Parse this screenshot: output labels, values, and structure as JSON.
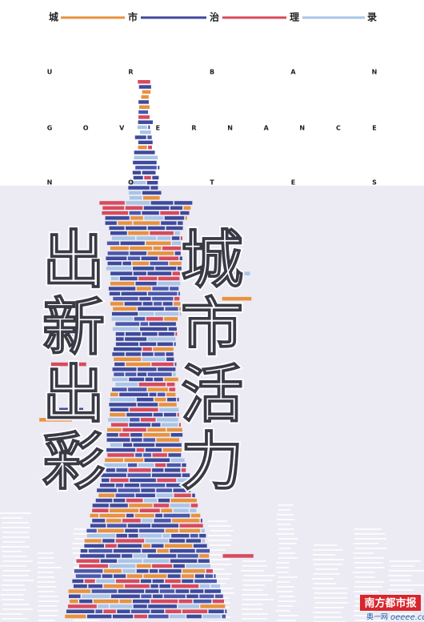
{
  "header": {
    "chars": [
      "城",
      "市",
      "治",
      "理",
      "录"
    ]
  },
  "english": {
    "rows": [
      [
        "U",
        "R",
        "B",
        "A",
        "N"
      ],
      [
        "G",
        "O",
        "V",
        "E",
        "R",
        "N",
        "A",
        "N",
        "C",
        "E"
      ],
      [
        "N",
        "O",
        "T",
        "E",
        "S"
      ]
    ]
  },
  "headline": {
    "left": [
      "出",
      "新",
      "出",
      "彩"
    ],
    "right": [
      "城",
      "市",
      "活",
      "力"
    ]
  },
  "logo": {
    "name": "南方都市报",
    "site_prefix": "奥一网",
    "site_domain": "oeeee.com"
  }
}
